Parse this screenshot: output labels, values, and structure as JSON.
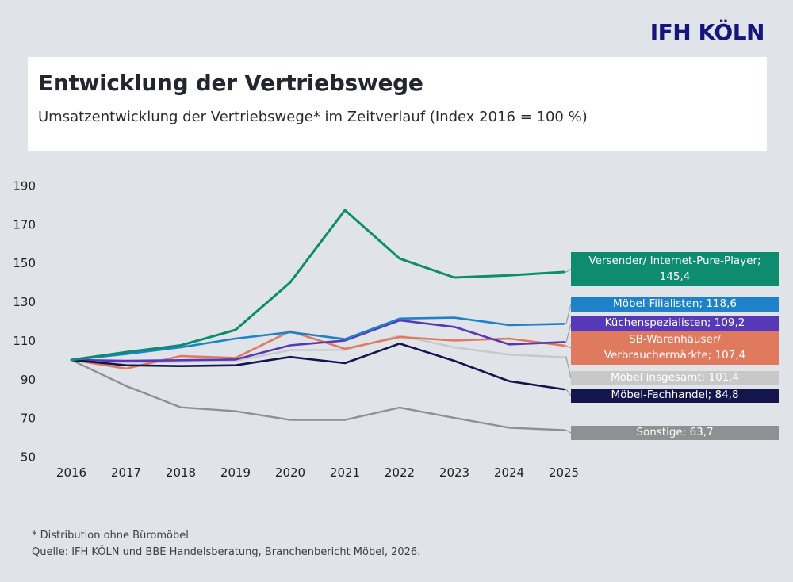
{
  "logo": {
    "text": "IFH KÖLN",
    "color": "#15157e"
  },
  "header": {
    "title": "Entwicklung der Vertriebswege",
    "subtitle": "Umsatzentwicklung der Vertriebswege* im Zeitverlauf (Index 2016 = 100 %)"
  },
  "chart_data": {
    "type": "line",
    "x": [
      "2016",
      "2017",
      "2018",
      "2019",
      "2020",
      "2021",
      "2022",
      "2023",
      "2024",
      "2025"
    ],
    "ylim": [
      50,
      190
    ],
    "yticks": [
      190,
      170,
      150,
      130,
      110,
      90,
      70,
      50
    ],
    "grid": false,
    "legend_position": "right-callout-boxes",
    "xlabel": "",
    "ylabel": "",
    "title": "",
    "series": [
      {
        "id": "versender",
        "name": "Versender/ Internet-Pure-Player",
        "end_value_label": "145,4",
        "label_lines": [
          "Versender/ Internet-Pure-Player;",
          "145,4"
        ],
        "color": "#0e8c70",
        "text_color": "#ffffff",
        "values": [
          100,
          104,
          107.5,
          115.5,
          140,
          177.3,
          152.3,
          142.5,
          143.6,
          145.4
        ]
      },
      {
        "id": "moebel-filialisten",
        "name": "Möbel-Filialisten",
        "end_value_label": "118,6",
        "label_lines": [
          "Möbel-Filialisten; 118,6"
        ],
        "color": "#1e82c8",
        "text_color": "#ffffff",
        "values": [
          100,
          103,
          106.5,
          111,
          114.3,
          110.7,
          121.3,
          121.8,
          118,
          118.6
        ]
      },
      {
        "id": "kuechenspezialisten",
        "name": "Küchenspezialisten",
        "end_value_label": "109,2",
        "label_lines": [
          "Küchenspezialisten; 109,2"
        ],
        "color": "#5639b8",
        "text_color": "#ffffff",
        "values": [
          100,
          99.5,
          99.8,
          100.2,
          107.5,
          110,
          120.4,
          117,
          108,
          109.2
        ]
      },
      {
        "id": "sb-warenhaeuser",
        "name": "SB-Warenhäuser/ Verbrauchermärkte",
        "end_value_label": "107,4",
        "label_lines": [
          "SB-Warenhäuser/",
          "Verbrauchermärkte; 107,4"
        ],
        "color": "#e07a5e",
        "text_color": "#ffffff",
        "values": [
          100,
          95.5,
          102,
          101,
          114.8,
          105.7,
          111.8,
          110,
          111,
          107.4
        ]
      },
      {
        "id": "moebel-insgesamt",
        "name": "Möbel insgesamt",
        "end_value_label": "101,4",
        "label_lines": [
          "Möbel insgesamt; 101,4"
        ],
        "color": "#c8c8c9",
        "text_color": "#ffffff",
        "values": [
          100,
          98.5,
          99,
          99.5,
          105,
          105.2,
          112.6,
          106.5,
          102.7,
          101.4
        ]
      },
      {
        "id": "moebel-fachhandel",
        "name": "Möbel-Fachhandel",
        "end_value_label": "84,8",
        "label_lines": [
          "Möbel-Fachhandel; 84,8"
        ],
        "color": "#15154e",
        "text_color": "#ffffff",
        "values": [
          100,
          97.2,
          96.8,
          97.2,
          101.5,
          98.3,
          108.4,
          99.5,
          89,
          84.8
        ]
      },
      {
        "id": "sonstige",
        "name": "Sonstige",
        "end_value_label": "63,7",
        "label_lines": [
          "Sonstige; 63,7"
        ],
        "color": "#909092",
        "text_color": "#ffffff",
        "values": [
          100,
          86.5,
          75.5,
          73.5,
          69,
          69,
          75.4,
          70,
          65,
          63.7
        ]
      }
    ]
  },
  "footnotes": [
    "* Distribution ohne Büromöbel",
    "Quelle: IFH KÖLN und BBE Handelsberatung, Branchenbericht Möbel, 2026."
  ],
  "colors": {
    "background": "#e0e3e7",
    "card": "#ffffff",
    "connector": "#9b9b9b",
    "axis_text": "#222222"
  }
}
